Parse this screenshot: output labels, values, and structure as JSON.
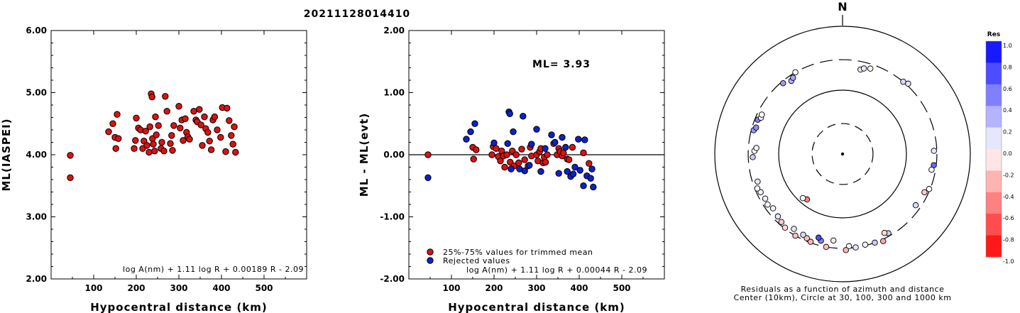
{
  "title": "20211128014410",
  "colors": {
    "accepted": "#dd1111",
    "rejected": "#0b22cc"
  },
  "chart_data": [
    {
      "type": "scatter",
      "title": "",
      "xlabel": "Hypocentral distance (km)",
      "ylabel": "ML(IASPEI)",
      "xlim": [
        0,
        600
      ],
      "ylim": [
        2.0,
        6.0
      ],
      "xticks": [
        "100",
        "200",
        "300",
        "400",
        "500"
      ],
      "yticks": [
        "2.00",
        "3.00",
        "4.00",
        "5.00",
        "6.00"
      ],
      "formula": "log A(nm) + 1.11 log R + 0.00189 R - 2.09",
      "points": [
        [
          45,
          3.99
        ],
        [
          45,
          3.63
        ],
        [
          135,
          4.37
        ],
        [
          145,
          4.5
        ],
        [
          150,
          4.28
        ],
        [
          152,
          4.1
        ],
        [
          155,
          4.65
        ],
        [
          158,
          4.26
        ],
        [
          195,
          4.1
        ],
        [
          198,
          4.23
        ],
        [
          200,
          4.59
        ],
        [
          205,
          4.43
        ],
        [
          210,
          4.4
        ],
        [
          215,
          4.1
        ],
        [
          218,
          4.22
        ],
        [
          222,
          4.38
        ],
        [
          225,
          4.15
        ],
        [
          230,
          4.04
        ],
        [
          232,
          4.45
        ],
        [
          235,
          4.98
        ],
        [
          237,
          4.93
        ],
        [
          238,
          4.26
        ],
        [
          240,
          4.17
        ],
        [
          243,
          4.06
        ],
        [
          245,
          4.61
        ],
        [
          247,
          4.32
        ],
        [
          252,
          4.47
        ],
        [
          258,
          4.1
        ],
        [
          260,
          4.2
        ],
        [
          265,
          4.06
        ],
        [
          268,
          4.94
        ],
        [
          272,
          4.7
        ],
        [
          280,
          4.18
        ],
        [
          283,
          4.31
        ],
        [
          285,
          4.07
        ],
        [
          288,
          4.47
        ],
        [
          300,
          4.78
        ],
        [
          303,
          4.43
        ],
        [
          307,
          4.56
        ],
        [
          310,
          4.23
        ],
        [
          315,
          4.58
        ],
        [
          318,
          4.36
        ],
        [
          321,
          4.29
        ],
        [
          325,
          4.25
        ],
        [
          335,
          4.7
        ],
        [
          340,
          4.56
        ],
        [
          343,
          4.53
        ],
        [
          348,
          4.73
        ],
        [
          352,
          4.48
        ],
        [
          355,
          4.15
        ],
        [
          360,
          4.61
        ],
        [
          363,
          4.42
        ],
        [
          368,
          4.36
        ],
        [
          372,
          4.22
        ],
        [
          376,
          4.08
        ],
        [
          380,
          4.56
        ],
        [
          384,
          4.61
        ],
        [
          390,
          4.4
        ],
        [
          398,
          4.28
        ],
        [
          402,
          4.76
        ],
        [
          410,
          4.05
        ],
        [
          413,
          4.75
        ],
        [
          418,
          4.55
        ],
        [
          423,
          4.31
        ],
        [
          427,
          4.17
        ],
        [
          430,
          4.45
        ],
        [
          433,
          4.04
        ]
      ]
    },
    {
      "type": "scatter",
      "title": "",
      "xlabel": "Hypocentral distance (km)",
      "ylabel": "ML - ML(evt)",
      "xlim": [
        0,
        600
      ],
      "ylim": [
        -2.0,
        2.0
      ],
      "xticks": [
        "100",
        "200",
        "300",
        "400",
        "500"
      ],
      "yticks": [
        "-2.00",
        "-1.00",
        "0.00",
        "1.00",
        "2.00"
      ],
      "annotation": "ML= 3.93",
      "formula": "log A(nm) + 1.11 log R + 0.00044 R - 2.09",
      "legend": [
        "25%-75% values for trimmed mean",
        "Rejected values"
      ],
      "legend_position": "bottom-left",
      "series": [
        {
          "name": "25%-75% values for trimmed mean",
          "points": [
            [
              45,
              0.0
            ],
            [
              150,
              0.12
            ],
            [
              152,
              -0.07
            ],
            [
              158,
              0.08
            ],
            [
              195,
              0.0
            ],
            [
              198,
              0.13
            ],
            [
              205,
              0.1
            ],
            [
              210,
              -0.03
            ],
            [
              215,
              -0.1
            ],
            [
              218,
              0.06
            ],
            [
              222,
              -0.02
            ],
            [
              225,
              -0.2
            ],
            [
              230,
              0.0
            ],
            [
              238,
              -0.12
            ],
            [
              243,
              0.06
            ],
            [
              247,
              -0.18
            ],
            [
              252,
              0.0
            ],
            [
              258,
              -0.13
            ],
            [
              265,
              0.09
            ],
            [
              272,
              -0.08
            ],
            [
              280,
              -0.18
            ],
            [
              285,
              0.12
            ],
            [
              288,
              -0.02
            ],
            [
              300,
              0.0
            ],
            [
              303,
              -0.1
            ],
            [
              307,
              0.05
            ],
            [
              310,
              0.1
            ],
            [
              315,
              -0.13
            ],
            [
              318,
              -0.04
            ],
            [
              321,
              -0.12
            ],
            [
              325,
              0.0
            ],
            [
              340,
              0.18
            ],
            [
              348,
              0.0
            ],
            [
              352,
              0.1
            ],
            [
              355,
              0.05
            ],
            [
              360,
              -0.02
            ],
            [
              363,
              0.03
            ],
            [
              372,
              -0.07
            ],
            [
              376,
              -0.08
            ],
            [
              384,
              0.12
            ],
            [
              410,
              0.03
            ],
            [
              423,
              -0.14
            ]
          ]
        },
        {
          "name": "Rejected values",
          "points": [
            [
              45,
              -0.37
            ],
            [
              135,
              0.25
            ],
            [
              145,
              0.37
            ],
            [
              155,
              0.5
            ],
            [
              200,
              0.19
            ],
            [
              232,
              0.18
            ],
            [
              235,
              0.69
            ],
            [
              237,
              0.66
            ],
            [
              240,
              -0.23
            ],
            [
              245,
              0.37
            ],
            [
              260,
              -0.23
            ],
            [
              268,
              0.62
            ],
            [
              272,
              -0.26
            ],
            [
              283,
              -0.17
            ],
            [
              288,
              0.17
            ],
            [
              300,
              0.41
            ],
            [
              310,
              -0.27
            ],
            [
              320,
              0.1
            ],
            [
              335,
              0.32
            ],
            [
              343,
              0.2
            ],
            [
              352,
              -0.3
            ],
            [
              360,
              0.28
            ],
            [
              368,
              0.12
            ],
            [
              372,
              -0.27
            ],
            [
              380,
              -0.35
            ],
            [
              386,
              -0.31
            ],
            [
              390,
              -0.2
            ],
            [
              398,
              0.25
            ],
            [
              402,
              -0.25
            ],
            [
              410,
              -0.5
            ],
            [
              413,
              0.24
            ],
            [
              418,
              -0.34
            ],
            [
              427,
              -0.38
            ],
            [
              430,
              -0.23
            ],
            [
              433,
              -0.52
            ]
          ]
        }
      ]
    },
    {
      "type": "scatter",
      "subtype": "polar",
      "title": "",
      "north_label": "N",
      "caption": [
        "Residuals as a function of azimuth and distance",
        "Center (10km), Circle at 30, 100, 300 and 1000 km"
      ],
      "colorbar": {
        "title": "Res",
        "range": [
          -1.0,
          1.0
        ],
        "ticks": [
          "1.0",
          "0.8",
          "0.6",
          "0.4",
          "0.2",
          "0.0",
          "-0.2",
          "-0.4",
          "-0.6",
          "-0.8",
          "-1.0"
        ]
      },
      "points": [
        {
          "az": 12,
          "dist": 225,
          "res": 0.1
        },
        {
          "az": 14,
          "dist": 240,
          "res": 0.1
        },
        {
          "az": 18,
          "dist": 255,
          "res": -0.05
        },
        {
          "az": 40,
          "dist": 300,
          "res": 0.15
        },
        {
          "az": 43,
          "dist": 320,
          "res": 0.1
        },
        {
          "az": 88,
          "dist": 270,
          "res": 0.1
        },
        {
          "az": 97,
          "dist": 275,
          "res": 0.6
        },
        {
          "az": 100,
          "dist": 260,
          "res": 0.05
        },
        {
          "az": 112,
          "dist": 290,
          "res": 0.0
        },
        {
          "az": 115,
          "dist": 260,
          "res": -0.2
        },
        {
          "az": 125,
          "dist": 250,
          "res": 0.15
        },
        {
          "az": 150,
          "dist": 270,
          "res": 0.2
        },
        {
          "az": 152,
          "dist": 250,
          "res": -0.15
        },
        {
          "az": 155,
          "dist": 320,
          "res": -0.35
        },
        {
          "az": 160,
          "dist": 300,
          "res": 0.2
        },
        {
          "az": 166,
          "dist": 290,
          "res": 0.05
        },
        {
          "az": 172,
          "dist": 300,
          "res": 0.1
        },
        {
          "az": 176,
          "dist": 280,
          "res": 0.0
        },
        {
          "az": 178,
          "dist": 320,
          "res": -0.3
        },
        {
          "az": 186,
          "dist": 230,
          "res": -0.1
        },
        {
          "az": 190,
          "dist": 300,
          "res": -0.25
        },
        {
          "az": 194,
          "dist": 250,
          "res": 0.5
        },
        {
          "az": 196,
          "dist": 230,
          "res": 0.7
        },
        {
          "az": 200,
          "dist": 290,
          "res": -0.3
        },
        {
          "az": 203,
          "dist": 270,
          "res": -0.25
        },
        {
          "az": 206,
          "dist": 255,
          "res": 0.15
        },
        {
          "az": 210,
          "dist": 300,
          "res": -0.25
        },
        {
          "az": 213,
          "dist": 250,
          "res": 0.1
        },
        {
          "az": 218,
          "dist": 290,
          "res": -0.15
        },
        {
          "az": 222,
          "dist": 270,
          "res": -0.2
        },
        {
          "az": 226,
          "dist": 255,
          "res": 0.1
        },
        {
          "az": 232,
          "dist": 240,
          "res": 0.05
        },
        {
          "az": 236,
          "dist": 260,
          "res": 0.0
        },
        {
          "az": 240,
          "dist": 250,
          "res": 0.05
        },
        {
          "az": 245,
          "dist": 260,
          "res": 0.05
        },
        {
          "az": 248,
          "dist": 275,
          "res": 0.0
        },
        {
          "az": 252,
          "dist": 250,
          "res": 0.1
        },
        {
          "az": 218,
          "dist": 80,
          "res": -0.5
        },
        {
          "az": 222,
          "dist": 85,
          "res": 0.0
        },
        {
          "az": 268,
          "dist": 255,
          "res": 0.2
        },
        {
          "az": 272,
          "dist": 240,
          "res": 0.0
        },
        {
          "az": 274,
          "dist": 225,
          "res": 0.05
        },
        {
          "az": 285,
          "dist": 275,
          "res": 0.4
        },
        {
          "az": 287,
          "dist": 260,
          "res": 0.45
        },
        {
          "az": 292,
          "dist": 270,
          "res": 0.5
        },
        {
          "az": 294,
          "dist": 250,
          "res": 0.05
        },
        {
          "az": 296,
          "dist": 255,
          "res": 0.0
        },
        {
          "az": 320,
          "dist": 280,
          "res": 0.4
        },
        {
          "az": 325,
          "dist": 250,
          "res": 0.3
        },
        {
          "az": 327,
          "dist": 265,
          "res": 0.35
        },
        {
          "az": 330,
          "dist": 300,
          "res": 0.0
        }
      ]
    }
  ]
}
